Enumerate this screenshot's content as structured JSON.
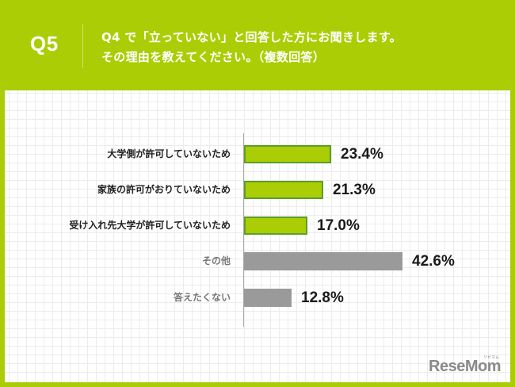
{
  "header": {
    "question_number": "Q5",
    "question_line1": "Q4 で「立っていない」と回答した方にお聞きします。",
    "question_line2": "その理由を教えてください。（複数回答）"
  },
  "colors": {
    "brand_green": "#abcd05",
    "bar_border_green": "#5a9e2c",
    "bar_gray": "#9a9a9a",
    "label_dark": "#222222",
    "label_gray": "#777777"
  },
  "rows": [
    {
      "label": "大学側が許可していないため",
      "value_text": "23.4%",
      "value": 23.4,
      "style": "green",
      "label_color": "#222222"
    },
    {
      "label": "家族の許可がおりていないため",
      "value_text": "21.3%",
      "value": 21.3,
      "style": "green",
      "label_color": "#222222"
    },
    {
      "label": "受け入れ先大学が許可していないため",
      "value_text": "17.0%",
      "value": 17.0,
      "style": "green",
      "label_color": "#222222"
    },
    {
      "label": "その他",
      "value_text": "42.6%",
      "value": 42.6,
      "style": "gray",
      "label_color": "#777777"
    },
    {
      "label": "答えたくない",
      "value_text": "12.8%",
      "value": 12.8,
      "style": "gray",
      "label_color": "#777777"
    }
  ],
  "logo": {
    "text": "ReseMom",
    "subtext": "リセマム"
  },
  "chart_data": {
    "type": "bar",
    "orientation": "horizontal",
    "title": "Q4 で「立っていない」と回答した方にお聞きします。その理由を教えてください。（複数回答）",
    "categories": [
      "大学側が許可していないため",
      "家族の許可がおりていないため",
      "受け入れ先大学が許可していないため",
      "その他",
      "答えたくない"
    ],
    "values": [
      23.4,
      21.3,
      17.0,
      42.6,
      12.8
    ],
    "unit": "%",
    "xlabel": "",
    "ylabel": "",
    "grid": true,
    "legend": false,
    "data_labels": [
      "23.4%",
      "21.3%",
      "17.0%",
      "42.6%",
      "12.8%"
    ]
  }
}
